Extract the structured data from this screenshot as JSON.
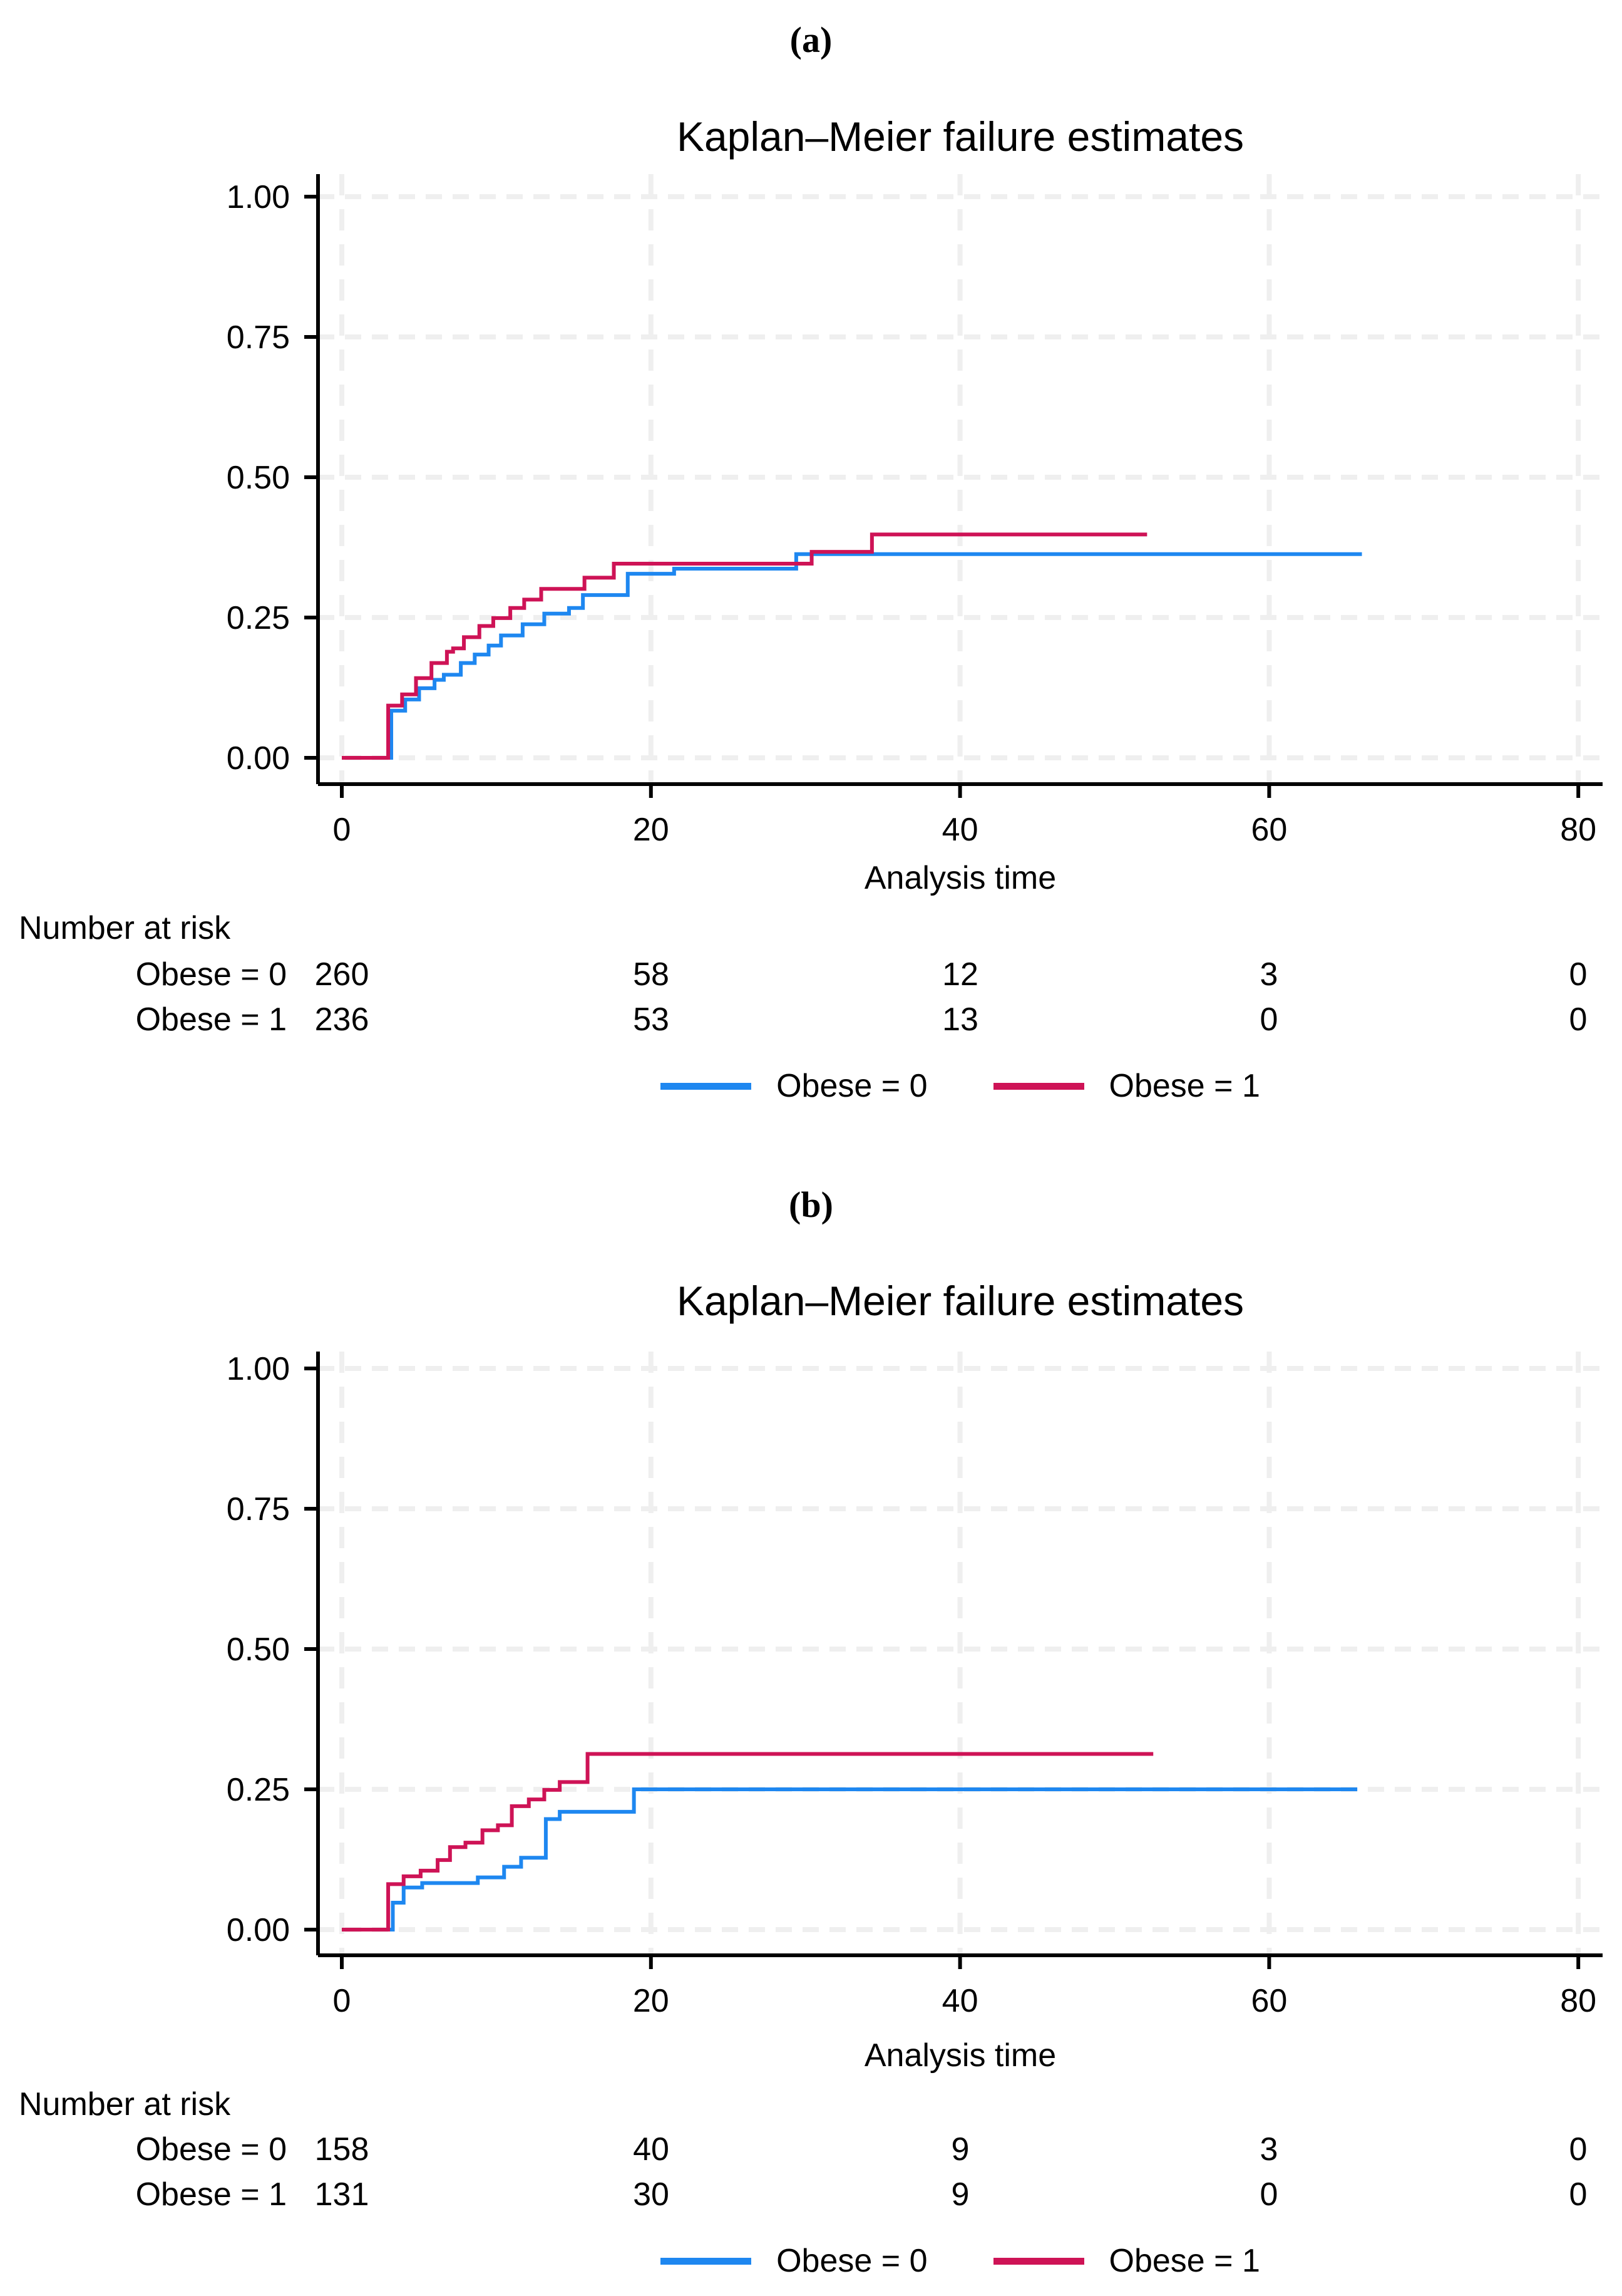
{
  "colors": {
    "obese0": "#1E87F0",
    "obese1": "#CE1356",
    "grid": "#EFEFEF",
    "axis": "#000000",
    "background": "#FFFFFF"
  },
  "chart_data": [
    {
      "panel": "a",
      "tag": "(a)",
      "type": "line",
      "step": true,
      "title": "Kaplan–Meier failure estimates",
      "xlabel": "Analysis time",
      "ylabel": "",
      "x_ticks": [
        0,
        20,
        40,
        60,
        80
      ],
      "y_ticks": [
        0,
        0.25,
        0.5,
        0.75,
        1
      ],
      "y_tick_labels": [
        "0.00",
        "0.25",
        "0.50",
        "0.75",
        "1.00"
      ],
      "xlim": [
        0,
        81.6
      ],
      "ylim": [
        0,
        1.05
      ],
      "grid": true,
      "legend_position": "bottom-center",
      "series": [
        {
          "name": "Obese = 0",
          "color": "#1E87F0",
          "start": [
            0,
            0
          ],
          "end": 66,
          "steps": [
            [
              3.2,
              0.084
            ],
            [
              4.1,
              0.104
            ],
            [
              5,
              0.124
            ],
            [
              6,
              0.139
            ],
            [
              6.6,
              0.148
            ],
            [
              7.7,
              0.169
            ],
            [
              8.6,
              0.184
            ],
            [
              9.5,
              0.2
            ],
            [
              10.3,
              0.218
            ],
            [
              11.7,
              0.238
            ],
            [
              13.1,
              0.257
            ],
            [
              14.7,
              0.267
            ],
            [
              15.6,
              0.29
            ],
            [
              18.5,
              0.328
            ],
            [
              21.5,
              0.337
            ],
            [
              29.4,
              0.363
            ]
          ]
        },
        {
          "name": "Obese = 1",
          "color": "#CE1356",
          "start": [
            0,
            0
          ],
          "end": 52.1,
          "steps": [
            [
              3,
              0.093
            ],
            [
              3.9,
              0.113
            ],
            [
              4.8,
              0.142
            ],
            [
              5.8,
              0.169
            ],
            [
              6.8,
              0.189
            ],
            [
              7.2,
              0.195
            ],
            [
              7.9,
              0.215
            ],
            [
              8.9,
              0.235
            ],
            [
              9.8,
              0.249
            ],
            [
              10.9,
              0.267
            ],
            [
              11.8,
              0.282
            ],
            [
              12.9,
              0.301
            ],
            [
              15.7,
              0.321
            ],
            [
              17.6,
              0.346
            ],
            [
              30.4,
              0.367
            ],
            [
              34.3,
              0.398
            ]
          ]
        }
      ],
      "number_at_risk": {
        "header": "Number at risk",
        "times": [
          0,
          20,
          40,
          60,
          80
        ],
        "rows": [
          {
            "label": "Obese = 0",
            "counts": [
              260,
              58,
              12,
              3,
              0
            ]
          },
          {
            "label": "Obese = 1",
            "counts": [
              236,
              53,
              13,
              0,
              0
            ]
          }
        ]
      },
      "legend": {
        "entries": [
          {
            "label": "Obese = 0",
            "color": "#1E87F0"
          },
          {
            "label": "Obese = 1",
            "color": "#CE1356"
          }
        ]
      }
    },
    {
      "panel": "b",
      "tag": "(b)",
      "type": "line",
      "step": true,
      "title": "Kaplan–Meier failure estimates",
      "xlabel": "Analysis time",
      "ylabel": "",
      "x_ticks": [
        0,
        20,
        40,
        60,
        80
      ],
      "y_ticks": [
        0,
        0.25,
        0.5,
        0.75,
        1
      ],
      "y_tick_labels": [
        "0.00",
        "0.25",
        "0.50",
        "0.75",
        "1.00"
      ],
      "xlim": [
        0,
        81.6
      ],
      "ylim": [
        0,
        1.05
      ],
      "grid": true,
      "legend_position": "bottom-center",
      "series": [
        {
          "name": "Obese = 0",
          "color": "#1E87F0",
          "start": [
            0,
            0
          ],
          "end": 65.7,
          "steps": [
            [
              3.3,
              0.048
            ],
            [
              4,
              0.075
            ],
            [
              5.2,
              0.083
            ],
            [
              8.8,
              0.093
            ],
            [
              10.5,
              0.112
            ],
            [
              11.6,
              0.128
            ],
            [
              13.2,
              0.197
            ],
            [
              14.1,
              0.21
            ],
            [
              18.9,
              0.25
            ]
          ]
        },
        {
          "name": "Obese = 1",
          "color": "#CE1356",
          "start": [
            0,
            0
          ],
          "end": 52.5,
          "steps": [
            [
              3,
              0.081
            ],
            [
              4,
              0.095
            ],
            [
              5.1,
              0.105
            ],
            [
              6.2,
              0.124
            ],
            [
              7,
              0.147
            ],
            [
              8,
              0.155
            ],
            [
              9.1,
              0.177
            ],
            [
              10.1,
              0.186
            ],
            [
              11,
              0.22
            ],
            [
              12.1,
              0.232
            ],
            [
              13.1,
              0.249
            ],
            [
              14.1,
              0.263
            ],
            [
              15.9,
              0.313
            ]
          ]
        }
      ],
      "number_at_risk": {
        "header": "Number at risk",
        "times": [
          0,
          20,
          40,
          60,
          80
        ],
        "rows": [
          {
            "label": "Obese = 0",
            "counts": [
              158,
              40,
              9,
              3,
              0
            ]
          },
          {
            "label": "Obese = 1",
            "counts": [
              131,
              30,
              9,
              0,
              0
            ]
          }
        ]
      },
      "legend": {
        "entries": [
          {
            "label": "Obese = 0",
            "color": "#1E87F0"
          },
          {
            "label": "Obese = 1",
            "color": "#CE1356"
          }
        ]
      }
    }
  ]
}
